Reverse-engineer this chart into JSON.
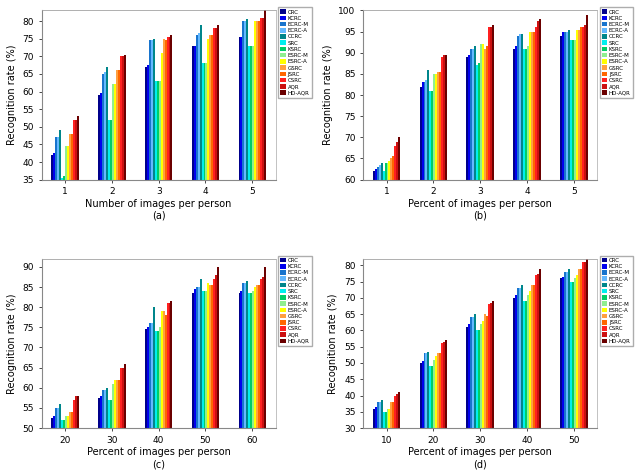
{
  "methods": [
    "CRC",
    "KCRC",
    "ECRC-M",
    "ECRC-A",
    "CCRC",
    "SRC",
    "KSRC",
    "ESRC-M",
    "ESRC-A",
    "GSRC",
    "JSRC",
    "CSRC",
    "AQR",
    "HD-AQR"
  ],
  "colors": [
    "#00008B",
    "#0000EE",
    "#1874CD",
    "#63B8FF",
    "#00868B",
    "#00EEEE",
    "#00CD66",
    "#90EE90",
    "#FFFF00",
    "#FFA040",
    "#FF6600",
    "#FF2020",
    "#CC1010",
    "#6B0000"
  ],
  "panel_a": {
    "subtitle": "(a)",
    "xlabel": "Number of images per person",
    "ylabel": "Recognition rate (%)",
    "xtick_labels": [
      "1",
      "2",
      "3",
      "4",
      "5"
    ],
    "ylim": [
      35,
      83
    ],
    "yticks": [
      35,
      40,
      45,
      50,
      55,
      60,
      65,
      70,
      75,
      80
    ],
    "data": [
      [
        42.0,
        59.0,
        67.0,
        73.0,
        75.5
      ],
      [
        42.5,
        59.5,
        67.5,
        73.0,
        75.5
      ],
      [
        47.0,
        65.0,
        74.5,
        76.0,
        80.0
      ],
      [
        47.0,
        65.5,
        74.5,
        76.5,
        80.0
      ],
      [
        49.0,
        67.0,
        75.0,
        79.0,
        80.5
      ],
      [
        35.5,
        52.0,
        63.0,
        68.0,
        73.0
      ],
      [
        36.0,
        52.0,
        63.0,
        68.0,
        73.0
      ],
      [
        44.5,
        62.0,
        63.0,
        68.0,
        73.0
      ],
      [
        44.5,
        62.0,
        71.0,
        75.0,
        80.0
      ],
      [
        48.0,
        66.0,
        75.0,
        76.0,
        80.0
      ],
      [
        48.0,
        66.0,
        74.5,
        76.0,
        80.0
      ],
      [
        52.0,
        70.0,
        75.5,
        78.0,
        81.0
      ],
      [
        52.0,
        70.0,
        75.5,
        78.0,
        81.0
      ],
      [
        53.0,
        70.5,
        76.0,
        79.0,
        83.0
      ]
    ]
  },
  "panel_b": {
    "subtitle": "(b)",
    "xlabel": "Percent of images per person",
    "ylabel": "Recognition rate (%)",
    "xtick_labels": [
      "1",
      "2",
      "3",
      "4",
      "5"
    ],
    "ylim": [
      60,
      100
    ],
    "yticks": [
      60,
      65,
      70,
      75,
      80,
      85,
      90,
      95,
      100
    ],
    "data": [
      [
        62.0,
        82.0,
        89.0,
        91.0,
        94.0
      ],
      [
        62.5,
        83.0,
        89.5,
        91.5,
        95.0
      ],
      [
        63.0,
        83.0,
        91.0,
        94.0,
        95.0
      ],
      [
        63.5,
        83.5,
        91.0,
        94.5,
        95.0
      ],
      [
        64.0,
        86.0,
        91.5,
        94.5,
        95.5
      ],
      [
        62.0,
        81.0,
        87.0,
        91.0,
        93.0
      ],
      [
        64.0,
        81.0,
        87.5,
        91.0,
        93.0
      ],
      [
        64.0,
        85.0,
        92.0,
        91.5,
        93.0
      ],
      [
        64.5,
        85.0,
        92.0,
        95.0,
        95.5
      ],
      [
        65.0,
        85.5,
        91.0,
        95.0,
        95.5
      ],
      [
        65.5,
        85.5,
        91.5,
        95.0,
        96.0
      ],
      [
        68.0,
        89.0,
        96.0,
        96.0,
        96.0
      ],
      [
        69.0,
        89.5,
        96.0,
        97.5,
        96.5
      ],
      [
        70.0,
        89.5,
        96.5,
        98.0,
        99.0
      ]
    ]
  },
  "panel_c": {
    "subtitle": "(c)",
    "xlabel": "Percent of images per person",
    "ylabel": "Recognition rate (%)",
    "xtick_labels": [
      "20",
      "30",
      "40",
      "50",
      "60"
    ],
    "ylim": [
      50,
      92
    ],
    "yticks": [
      50,
      55,
      60,
      65,
      70,
      75,
      80,
      85,
      90
    ],
    "data": [
      [
        52.5,
        57.5,
        74.5,
        83.5,
        83.5
      ],
      [
        53.0,
        58.0,
        75.0,
        84.5,
        84.0
      ],
      [
        55.0,
        59.5,
        76.0,
        85.0,
        86.0
      ],
      [
        55.0,
        59.5,
        76.0,
        85.0,
        86.0
      ],
      [
        56.0,
        60.0,
        80.0,
        87.0,
        86.5
      ],
      [
        52.0,
        57.0,
        74.0,
        84.0,
        83.5
      ],
      [
        52.0,
        57.0,
        74.0,
        84.0,
        83.5
      ],
      [
        53.0,
        61.0,
        75.0,
        84.0,
        84.0
      ],
      [
        53.0,
        62.0,
        79.0,
        86.0,
        85.0
      ],
      [
        54.0,
        62.0,
        79.0,
        85.5,
        85.5
      ],
      [
        54.0,
        62.0,
        78.0,
        85.5,
        85.5
      ],
      [
        57.0,
        65.0,
        81.0,
        87.0,
        87.0
      ],
      [
        58.0,
        65.0,
        81.0,
        88.0,
        87.5
      ],
      [
        58.0,
        66.0,
        81.5,
        90.0,
        90.0
      ]
    ]
  },
  "panel_d": {
    "subtitle": "(d)",
    "xlabel": "Percent of images per person",
    "ylabel": "Recognition rate (%)",
    "xtick_labels": [
      "10",
      "20",
      "30",
      "40",
      "50"
    ],
    "ylim": [
      30,
      82
    ],
    "yticks": [
      30,
      35,
      40,
      45,
      50,
      55,
      60,
      65,
      70,
      75,
      80
    ],
    "data": [
      [
        36.0,
        50.0,
        61.0,
        70.0,
        76.0
      ],
      [
        36.5,
        50.5,
        62.0,
        71.0,
        76.5
      ],
      [
        38.0,
        53.0,
        64.0,
        73.0,
        78.0
      ],
      [
        38.0,
        53.0,
        64.0,
        73.0,
        78.0
      ],
      [
        38.5,
        53.5,
        65.0,
        74.0,
        79.0
      ],
      [
        35.0,
        49.0,
        60.0,
        69.0,
        75.0
      ],
      [
        35.0,
        49.0,
        60.0,
        69.0,
        75.0
      ],
      [
        36.0,
        51.0,
        62.0,
        71.0,
        76.0
      ],
      [
        36.0,
        52.0,
        63.0,
        72.0,
        77.0
      ],
      [
        38.0,
        53.0,
        65.0,
        74.0,
        79.0
      ],
      [
        38.0,
        53.0,
        64.5,
        74.0,
        79.0
      ],
      [
        40.0,
        56.0,
        68.0,
        77.0,
        81.0
      ],
      [
        40.5,
        56.5,
        68.5,
        77.5,
        81.0
      ],
      [
        41.0,
        57.0,
        69.0,
        79.0,
        82.0
      ]
    ]
  }
}
